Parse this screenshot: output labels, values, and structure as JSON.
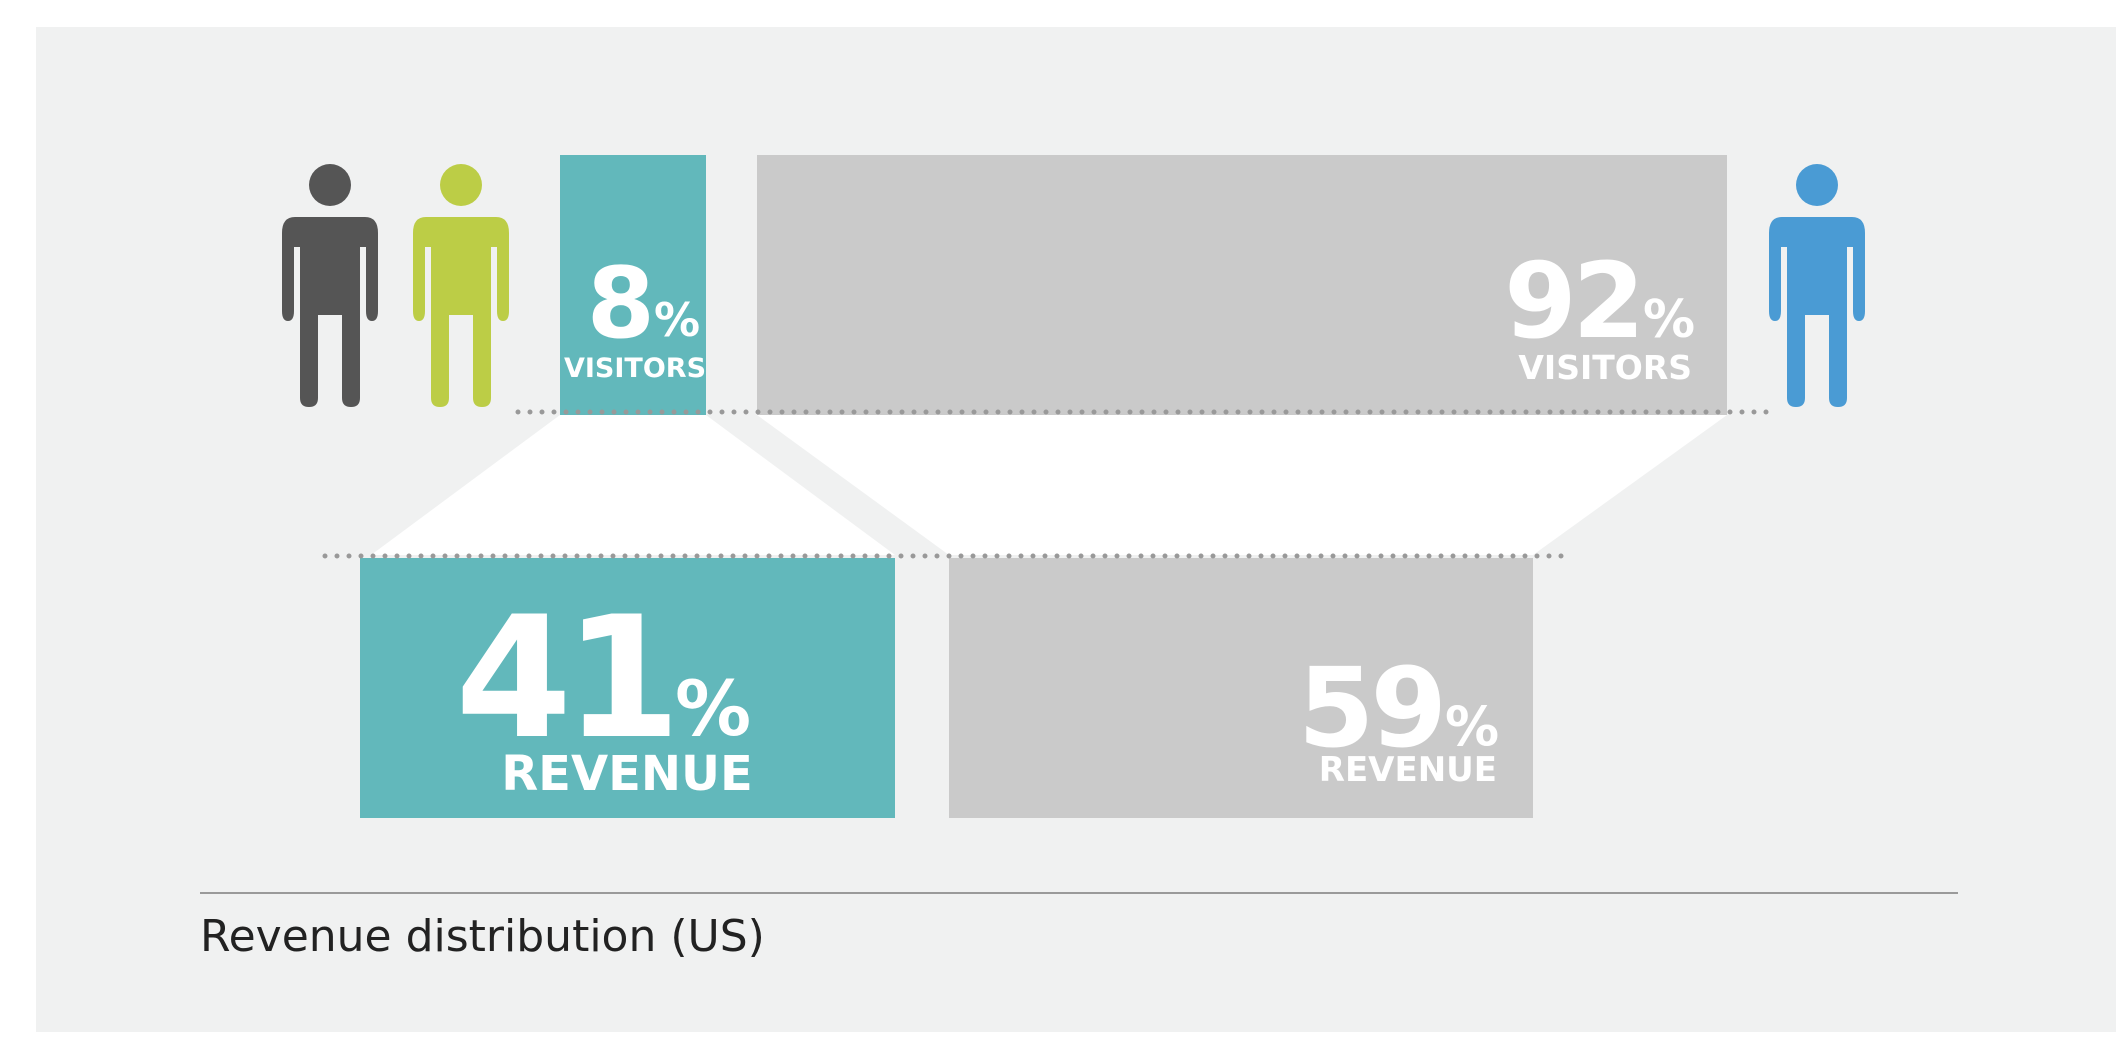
{
  "colors": {
    "panel_bg": "#f0f1f1",
    "bar_highlight": "#62b8bb",
    "bar_rest": "#cacaca",
    "connector": "#ffffff",
    "dots": "#999999",
    "person_dark": "#555555",
    "person_green": "#bccd46",
    "person_blue": "#4a9bd4",
    "text_on_bar": "#ffffff",
    "caption_text": "#222222",
    "divider": "#9a9a9a"
  },
  "icons": {
    "left_1": "person-icon",
    "left_2": "person-icon",
    "right": "person-icon"
  },
  "chart_data": {
    "type": "bar",
    "caption": "Revenue distribution (US)",
    "orientation": "stacked-horizontal-split",
    "series": [
      {
        "name": "VISITORS",
        "segments": [
          {
            "value": 8,
            "unit": "%",
            "group": "highlight"
          },
          {
            "value": 92,
            "unit": "%",
            "group": "rest"
          }
        ]
      },
      {
        "name": "REVENUE",
        "segments": [
          {
            "value": 41,
            "unit": "%",
            "group": "highlight"
          },
          {
            "value": 59,
            "unit": "%",
            "group": "rest"
          }
        ]
      }
    ],
    "data_labels": {
      "visitors_highlight_value": "8",
      "visitors_rest_value": "92",
      "revenue_highlight_value": "41",
      "revenue_rest_value": "59",
      "percent_sign": "%",
      "visitors_label": "VISITORS",
      "revenue_label": "REVENUE"
    }
  }
}
